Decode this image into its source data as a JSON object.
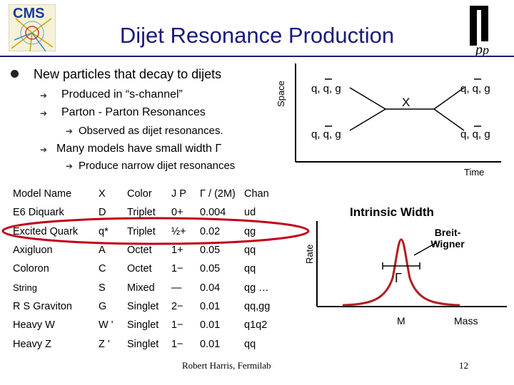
{
  "header": {
    "title": "Dijet Resonance Production",
    "cms_logo_text": "CMS",
    "fermilab_logo_text": "Fermilab"
  },
  "bullets": {
    "main": "New particles that decay to dijets",
    "sub1": "Produced in “s-channel”",
    "sub2": "Parton - Parton Resonances",
    "sub2a": "Observed as dijet resonances.",
    "sub3": "Many models have small width Γ",
    "sub3a": "Produce narrow dijet resonances"
  },
  "feynman": {
    "space_label": "Space",
    "time_label": "Time",
    "in_top": "q, q, g",
    "in_bottom": "q, q, g",
    "out_top": "q, q, g",
    "out_bottom": "q, q, g",
    "resonance": "X"
  },
  "table": {
    "headers": [
      "Model Name",
      "X",
      "Color",
      "J P",
      "Γ / (2M)",
      "Chan"
    ],
    "rows": [
      [
        "E6 Diquark",
        "D",
        "Triplet",
        "0+",
        "0.004",
        "ud"
      ],
      [
        "Excited Quark",
        "q*",
        "Triplet",
        "½+",
        "0.02",
        "qg"
      ],
      [
        "Axigluon",
        "A",
        "Octet",
        "1+",
        "0.05",
        "qq"
      ],
      [
        "Coloron",
        "C",
        "Octet",
        "1−",
        "0.05",
        "qq"
      ],
      [
        "String",
        "S",
        "Mixed",
        "—",
        "0.04",
        "qg …"
      ],
      [
        "R S Graviton",
        "G",
        "Singlet",
        "2−",
        "0.01",
        "qq,gg"
      ],
      [
        "Heavy W",
        "W '",
        "Singlet",
        "1−",
        "0.01",
        "q1q2"
      ],
      [
        "Heavy Z",
        "Z '",
        "Singlet",
        "1−",
        "0.01",
        "qq"
      ]
    ]
  },
  "width_plot": {
    "title": "Intrinsic Width",
    "curve_label": "Breit-Wigner",
    "gamma_label": "Γ",
    "y_axis": "Rate",
    "x_axis": "Mass",
    "peak_label": "M"
  },
  "footer": {
    "author": "Robert Harris, Fermilab",
    "page": "12"
  },
  "colors": {
    "title": "#1a1a7a",
    "highlight_ellipse": "#c0001a",
    "breit_wigner": "#b02020"
  }
}
